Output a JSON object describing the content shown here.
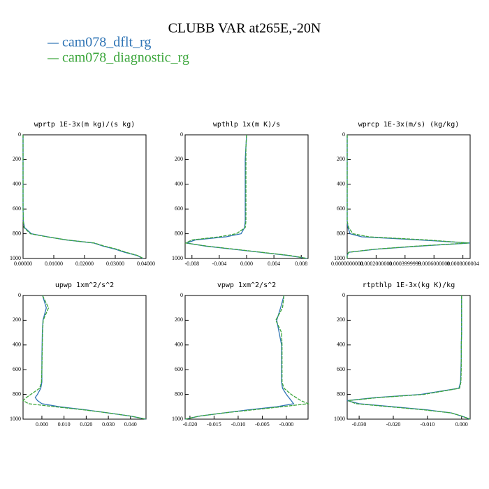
{
  "title": "CLUBB VAR at265E,-20N",
  "legend": [
    {
      "name": "cam078_dflt_rg",
      "color": "#2f74b5"
    },
    {
      "name": "cam078_diagnostic_rg",
      "color": "#3aa53a"
    }
  ],
  "chart_data": [
    {
      "type": "line",
      "title": "wprtp  1E-3x(m kg)/(s kg)",
      "levels": [
        0,
        100,
        200,
        300,
        400,
        500,
        600,
        700,
        750,
        800,
        825,
        850,
        875,
        900,
        925,
        950,
        975,
        1000
      ],
      "series": [
        {
          "values": [
            0,
            0,
            0,
            0,
            0,
            0,
            0,
            0.0001,
            0.0005,
            0.0027,
            0.008,
            0.014,
            0.023,
            0.026,
            0.03,
            0.033,
            0.037,
            0.039
          ]
        },
        {
          "values": [
            0,
            0,
            0,
            0,
            0,
            0,
            0,
            0.0001,
            0.0003,
            0.0024,
            0.0078,
            0.0142,
            0.0232,
            0.0265,
            0.0305,
            0.0335,
            0.0372,
            0.0392
          ]
        }
      ],
      "xlim": [
        0,
        0.04
      ],
      "xticks": [
        {
          "value": 0,
          "label": "0.00000"
        },
        {
          "value": 0.01,
          "label": "0.01000"
        },
        {
          "value": 0.02,
          "label": "0.02000"
        },
        {
          "value": 0.03,
          "label": "0.03000"
        },
        {
          "value": 0.04,
          "label": "0.04000"
        }
      ],
      "ylim": [
        0,
        1000
      ],
      "yticks": [
        0,
        200,
        400,
        600,
        800,
        1000
      ],
      "y_inverted": true
    },
    {
      "type": "line",
      "title": "wpthlp  1x(m K)/s",
      "levels": [
        0,
        100,
        200,
        300,
        400,
        500,
        600,
        700,
        750,
        800,
        825,
        850,
        875,
        900,
        925,
        950,
        975,
        1000
      ],
      "series": [
        {
          "values": [
            0,
            -0.0001,
            -0.0002,
            -0.0002,
            -0.0002,
            -0.0002,
            -0.0002,
            -0.0002,
            -0.0003,
            -0.0008,
            -0.003,
            -0.0075,
            -0.0088,
            -0.006,
            -0.002,
            0.002,
            0.006,
            0.0089
          ]
        },
        {
          "values": [
            0,
            -0.0001,
            -0.0001,
            -0.0001,
            -0.0001,
            -0.0001,
            -0.0001,
            -0.0001,
            -0.0002,
            -0.0015,
            -0.004,
            -0.008,
            -0.0089,
            -0.0058,
            -0.0018,
            0.0022,
            0.0062,
            0.0089
          ]
        }
      ],
      "xlim": [
        -0.009,
        0.009
      ],
      "xticks": [
        -0.008,
        -0.004,
        {
          "value": 0,
          "label": "0.000"
        },
        0.004,
        0.008
      ],
      "ylim": [
        0,
        1000
      ],
      "yticks": [
        0,
        200,
        400,
        600,
        800,
        1000
      ],
      "y_inverted": true
    },
    {
      "type": "line",
      "title": "wprcp  1E-3x(m/s) (kg/kg)",
      "levels": [
        0,
        100,
        200,
        300,
        400,
        500,
        600,
        700,
        750,
        800,
        825,
        850,
        875,
        900,
        925,
        950,
        975,
        1000
      ],
      "series": [
        {
          "values": [
            0,
            0,
            0,
            0,
            0,
            0,
            0,
            0,
            5e-06,
            2e-05,
            0.0001,
            0.0005,
            0.00085,
            0.0005,
            0.0002,
            1e-05,
            0,
            0
          ]
        },
        {
          "values": [
            0,
            0,
            0,
            0,
            0,
            0,
            0,
            0,
            1e-05,
            4e-05,
            0.00015,
            0.00055,
            0.00084,
            0.00048,
            0.00019,
            1e-05,
            0,
            0
          ]
        }
      ],
      "xlim": [
        0,
        0.00085
      ],
      "xticks": [
        {
          "value": 0,
          "label": "0.0000000000"
        },
        {
          "value": 0.0002,
          "label": "0.0002000000"
        },
        {
          "value": 0.0003999999,
          "label": "0.0003999999"
        },
        {
          "value": 0.0006,
          "label": "0.0006000000"
        },
        {
          "value": 0.0008000004,
          "label": "0.0008000004"
        }
      ],
      "ylim": [
        0,
        1000
      ],
      "yticks": [
        0,
        200,
        400,
        600,
        800,
        1000
      ],
      "y_inverted": true
    },
    {
      "type": "line",
      "title": "upwp  1xm^2/s^2",
      "levels": [
        0,
        100,
        200,
        300,
        400,
        500,
        600,
        700,
        750,
        800,
        825,
        850,
        875,
        900,
        925,
        950,
        975,
        1000
      ],
      "series": [
        {
          "values": [
            0.0003,
            0.002,
            0.0005,
            0.0002,
            0.0001,
            0,
            0,
            0,
            -0.0005,
            -0.002,
            -0.003,
            -0.002,
            0,
            0.008,
            0.02,
            0.03,
            0.04,
            0.047
          ]
        },
        {
          "values": [
            0.0003,
            0.003,
            0.0006,
            0.0003,
            0.0002,
            0.0001,
            0,
            -0.0002,
            -0.001,
            -0.005,
            -0.007,
            -0.0085,
            -0.006,
            0.006,
            0.019,
            0.03,
            0.04,
            0.047
          ]
        }
      ],
      "xlim": [
        -0.0085,
        0.047
      ],
      "xticks": [
        {
          "value": 0,
          "label": "0.000"
        },
        {
          "value": 0.01,
          "label": "0.010"
        },
        {
          "value": 0.02,
          "label": "0.020"
        },
        {
          "value": 0.03,
          "label": "0.030"
        },
        {
          "value": 0.04,
          "label": "0.040"
        }
      ],
      "ylim": [
        0,
        1000
      ],
      "yticks": [
        0,
        200,
        400,
        600,
        800,
        1000
      ],
      "y_inverted": true
    },
    {
      "type": "line",
      "title": "vpwp  1xm^2/s^2",
      "levels": [
        0,
        100,
        200,
        300,
        400,
        500,
        600,
        700,
        750,
        800,
        825,
        850,
        875,
        900,
        925,
        950,
        975,
        1000
      ],
      "series": [
        {
          "values": [
            -0.0005,
            -0.0012,
            -0.002,
            -0.0015,
            -0.001,
            -0.001,
            -0.001,
            -0.001,
            -0.0008,
            0,
            0.0005,
            0.001,
            0.0015,
            -0.002,
            -0.008,
            -0.013,
            -0.018,
            -0.021
          ]
        },
        {
          "values": [
            -0.0005,
            -0.0008,
            -0.0022,
            -0.001,
            -0.0009,
            -0.0009,
            -0.0009,
            -0.0009,
            -0.0005,
            0.001,
            0.002,
            0.003,
            0.0045,
            -0.001,
            -0.007,
            -0.013,
            -0.018,
            -0.021
          ]
        }
      ],
      "xlim": [
        -0.021,
        0.0045
      ],
      "xticks": [
        {
          "value": -0.02,
          "label": "-0.020"
        },
        {
          "value": -0.015,
          "label": "-0.015"
        },
        {
          "value": -0.01,
          "label": "-0.010"
        },
        -0.005,
        {
          "value": 0,
          "label": "-0.000"
        }
      ],
      "ylim": [
        0,
        1000
      ],
      "yticks": [
        0,
        200,
        400,
        600,
        800,
        1000
      ],
      "y_inverted": true
    },
    {
      "type": "line",
      "title": "rtpthlp  1E-3x(kg K)/kg",
      "levels": [
        0,
        100,
        200,
        300,
        400,
        500,
        600,
        700,
        750,
        800,
        825,
        850,
        875,
        900,
        925,
        950,
        975,
        1000
      ],
      "series": [
        {
          "values": [
            0,
            0,
            0,
            0,
            -0.0001,
            -0.0001,
            -0.0002,
            -0.0003,
            -0.0008,
            -0.012,
            -0.025,
            -0.0335,
            -0.03,
            -0.02,
            -0.01,
            -0.003,
            0,
            0.0025
          ]
        },
        {
          "values": [
            0,
            0,
            0,
            0,
            -0.0001,
            -0.0001,
            -0.0001,
            -0.0002,
            -0.0006,
            -0.011,
            -0.024,
            -0.0332,
            -0.031,
            -0.021,
            -0.011,
            -0.003,
            0,
            0.0025
          ]
        }
      ],
      "xlim": [
        -0.0335,
        0.0025
      ],
      "xticks": [
        {
          "value": -0.03,
          "label": "-0.030"
        },
        {
          "value": -0.02,
          "label": "-0.020"
        },
        {
          "value": -0.01,
          "label": "-0.010"
        },
        {
          "value": 0,
          "label": "0.000"
        }
      ],
      "ylim": [
        0,
        1000
      ],
      "yticks": [
        0,
        200,
        400,
        600,
        800,
        1000
      ],
      "y_inverted": true
    }
  ]
}
